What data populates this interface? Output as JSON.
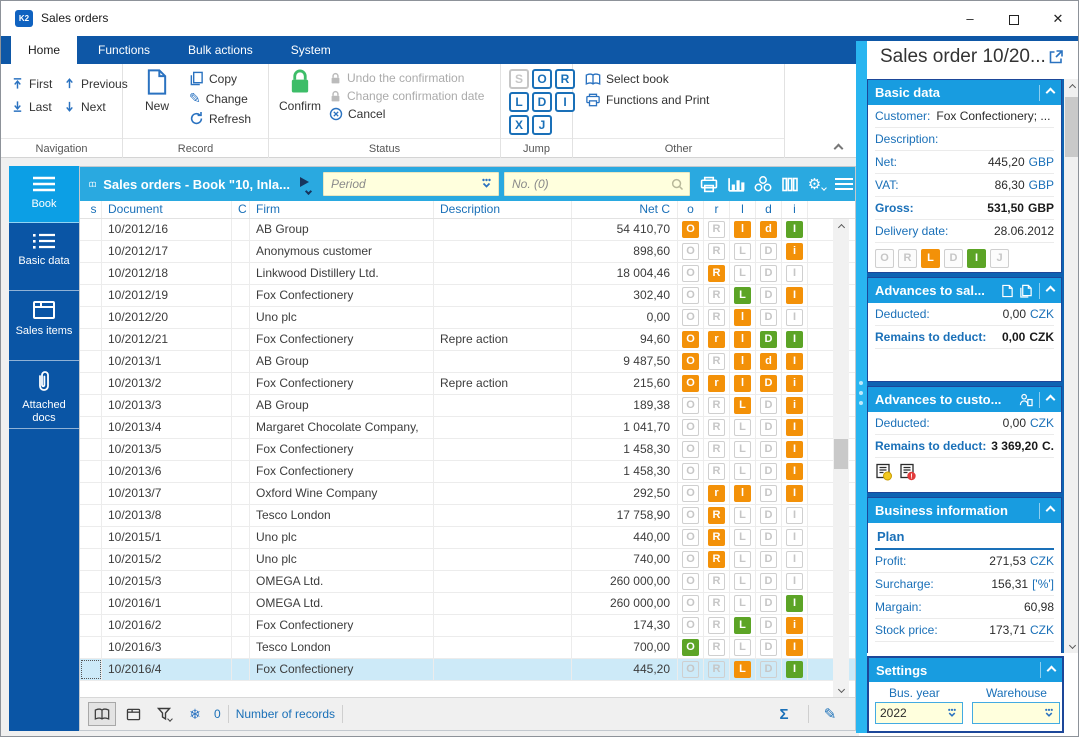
{
  "titlebar": {
    "app_title": "Sales orders"
  },
  "tabs": [
    {
      "label": "Home",
      "active": true
    },
    {
      "label": "Functions",
      "active": false
    },
    {
      "label": "Bulk actions",
      "active": false
    },
    {
      "label": "System",
      "active": false
    }
  ],
  "ribbon": {
    "navigation": {
      "label": "Navigation",
      "first": "First",
      "previous": "Previous",
      "last": "Last",
      "next": "Next"
    },
    "record": {
      "label": "Record",
      "new": "New",
      "copy": "Copy",
      "change": "Change",
      "refresh": "Refresh"
    },
    "status": {
      "label": "Status",
      "confirm": "Confirm",
      "undo": "Undo the confirmation",
      "change_date": "Change confirmation date",
      "cancel": "Cancel"
    },
    "jump": {
      "label": "Jump",
      "letters": [
        {
          "ch": "S",
          "disabled": true
        },
        {
          "ch": "O",
          "disabled": false
        },
        {
          "ch": "R",
          "disabled": false
        },
        {
          "ch": "L",
          "disabled": false
        },
        {
          "ch": "D",
          "disabled": false
        },
        {
          "ch": "I",
          "disabled": false
        },
        {
          "ch": "X",
          "disabled": false
        },
        {
          "ch": "J",
          "disabled": false
        }
      ]
    },
    "other": {
      "label": "Other",
      "select_book": "Select book",
      "functions_print": "Functions and Print"
    }
  },
  "sidebar": {
    "items": [
      {
        "label": "Book",
        "icon": "menu-icon",
        "active": true
      },
      {
        "label": "Basic data",
        "icon": "list-icon",
        "active": false
      },
      {
        "label": "Sales items",
        "icon": "box-icon",
        "active": false
      },
      {
        "label": "Attached docs",
        "icon": "paperclip-icon",
        "active": false
      }
    ]
  },
  "grid": {
    "title": "Sales orders - Book \"10, Inla...",
    "period_placeholder": "Period",
    "search_placeholder": "No. (0)",
    "toolbar_icons": [
      "printer-icon",
      "bar-chart-icon",
      "cluster-icon",
      "columns-icon",
      "gear-icon",
      "menu-icon"
    ],
    "columns": [
      "s",
      "Document",
      "C",
      "Firm",
      "Description",
      "Net C",
      "o",
      "r",
      "l",
      "d",
      "i"
    ],
    "rows": [
      {
        "document": "10/2012/16",
        "firm": "AB Group",
        "description": "",
        "net": "54 410,70",
        "selected": false,
        "status": [
          {
            "ch": "O",
            "style": "orange"
          },
          {
            "ch": "R",
            "style": "grey"
          },
          {
            "ch": "l",
            "style": "orange"
          },
          {
            "ch": "d",
            "style": "orange"
          },
          {
            "ch": "I",
            "style": "green"
          }
        ]
      },
      {
        "document": "10/2012/17",
        "firm": "Anonymous customer",
        "description": "",
        "net": "898,60",
        "selected": false,
        "status": [
          {
            "ch": "O",
            "style": "grey"
          },
          {
            "ch": "R",
            "style": "grey"
          },
          {
            "ch": "L",
            "style": "grey"
          },
          {
            "ch": "D",
            "style": "grey"
          },
          {
            "ch": "i",
            "style": "orange"
          }
        ]
      },
      {
        "document": "10/2012/18",
        "firm": "Linkwood Distillery Ltd.",
        "description": "",
        "net": "18 004,46",
        "selected": false,
        "status": [
          {
            "ch": "O",
            "style": "grey"
          },
          {
            "ch": "R",
            "style": "orange"
          },
          {
            "ch": "L",
            "style": "grey"
          },
          {
            "ch": "D",
            "style": "grey"
          },
          {
            "ch": "I",
            "style": "grey"
          }
        ]
      },
      {
        "document": "10/2012/19",
        "firm": "Fox Confectionery",
        "description": "",
        "net": "302,40",
        "selected": false,
        "status": [
          {
            "ch": "O",
            "style": "grey"
          },
          {
            "ch": "R",
            "style": "grey"
          },
          {
            "ch": "L",
            "style": "green"
          },
          {
            "ch": "D",
            "style": "grey"
          },
          {
            "ch": "I",
            "style": "orange"
          }
        ]
      },
      {
        "document": "10/2012/20",
        "firm": "Uno plc",
        "description": "",
        "net": "0,00",
        "selected": false,
        "status": [
          {
            "ch": "O",
            "style": "grey"
          },
          {
            "ch": "R",
            "style": "grey"
          },
          {
            "ch": "l",
            "style": "orange"
          },
          {
            "ch": "D",
            "style": "grey"
          },
          {
            "ch": "I",
            "style": "grey"
          }
        ]
      },
      {
        "document": "10/2012/21",
        "firm": "Fox Confectionery",
        "description": "Repre action",
        "net": "94,60",
        "selected": false,
        "status": [
          {
            "ch": "O",
            "style": "orange"
          },
          {
            "ch": "r",
            "style": "orange"
          },
          {
            "ch": "l",
            "style": "orange"
          },
          {
            "ch": "D",
            "style": "green"
          },
          {
            "ch": "I",
            "style": "green"
          }
        ]
      },
      {
        "document": "10/2013/1",
        "firm": "AB Group",
        "description": "",
        "net": "9 487,50",
        "selected": false,
        "status": [
          {
            "ch": "O",
            "style": "orange"
          },
          {
            "ch": "R",
            "style": "grey"
          },
          {
            "ch": "l",
            "style": "orange"
          },
          {
            "ch": "d",
            "style": "orange"
          },
          {
            "ch": "I",
            "style": "orange"
          }
        ]
      },
      {
        "document": "10/2013/2",
        "firm": "Fox Confectionery",
        "description": "Repre action",
        "net": "215,60",
        "selected": false,
        "status": [
          {
            "ch": "O",
            "style": "orange"
          },
          {
            "ch": "r",
            "style": "orange"
          },
          {
            "ch": "l",
            "style": "orange"
          },
          {
            "ch": "D",
            "style": "orange"
          },
          {
            "ch": "i",
            "style": "orange"
          }
        ]
      },
      {
        "document": "10/2013/3",
        "firm": "AB Group",
        "description": "",
        "net": "189,38",
        "selected": false,
        "status": [
          {
            "ch": "O",
            "style": "grey"
          },
          {
            "ch": "R",
            "style": "grey"
          },
          {
            "ch": "L",
            "style": "orange"
          },
          {
            "ch": "D",
            "style": "grey"
          },
          {
            "ch": "i",
            "style": "orange"
          }
        ]
      },
      {
        "document": "10/2013/4",
        "firm": "Margaret Chocolate Company,",
        "description": "",
        "net": "1 041,70",
        "selected": false,
        "status": [
          {
            "ch": "O",
            "style": "grey"
          },
          {
            "ch": "R",
            "style": "grey"
          },
          {
            "ch": "L",
            "style": "grey"
          },
          {
            "ch": "D",
            "style": "grey"
          },
          {
            "ch": "I",
            "style": "orange"
          }
        ]
      },
      {
        "document": "10/2013/5",
        "firm": "Fox Confectionery",
        "description": "",
        "net": "1 458,30",
        "selected": false,
        "status": [
          {
            "ch": "O",
            "style": "grey"
          },
          {
            "ch": "R",
            "style": "grey"
          },
          {
            "ch": "L",
            "style": "grey"
          },
          {
            "ch": "D",
            "style": "grey"
          },
          {
            "ch": "I",
            "style": "orange"
          }
        ]
      },
      {
        "document": "10/2013/6",
        "firm": "Fox Confectionery",
        "description": "",
        "net": "1 458,30",
        "selected": false,
        "status": [
          {
            "ch": "O",
            "style": "grey"
          },
          {
            "ch": "R",
            "style": "grey"
          },
          {
            "ch": "L",
            "style": "grey"
          },
          {
            "ch": "D",
            "style": "grey"
          },
          {
            "ch": "I",
            "style": "orange"
          }
        ]
      },
      {
        "document": "10/2013/7",
        "firm": "Oxford Wine Company",
        "description": "",
        "net": "292,50",
        "selected": false,
        "status": [
          {
            "ch": "O",
            "style": "grey"
          },
          {
            "ch": "r",
            "style": "orange"
          },
          {
            "ch": "l",
            "style": "orange"
          },
          {
            "ch": "D",
            "style": "grey"
          },
          {
            "ch": "I",
            "style": "orange"
          }
        ]
      },
      {
        "document": "10/2013/8",
        "firm": "Tesco London",
        "description": "",
        "net": "17 758,90",
        "selected": false,
        "status": [
          {
            "ch": "O",
            "style": "grey"
          },
          {
            "ch": "R",
            "style": "orange"
          },
          {
            "ch": "L",
            "style": "grey"
          },
          {
            "ch": "D",
            "style": "grey"
          },
          {
            "ch": "I",
            "style": "grey"
          }
        ]
      },
      {
        "document": "10/2015/1",
        "firm": "Uno plc",
        "description": "",
        "net": "440,00",
        "selected": false,
        "status": [
          {
            "ch": "O",
            "style": "grey"
          },
          {
            "ch": "R",
            "style": "orange"
          },
          {
            "ch": "L",
            "style": "grey"
          },
          {
            "ch": "D",
            "style": "grey"
          },
          {
            "ch": "I",
            "style": "grey"
          }
        ]
      },
      {
        "document": "10/2015/2",
        "firm": "Uno plc",
        "description": "",
        "net": "740,00",
        "selected": false,
        "status": [
          {
            "ch": "O",
            "style": "grey"
          },
          {
            "ch": "R",
            "style": "orange"
          },
          {
            "ch": "L",
            "style": "grey"
          },
          {
            "ch": "D",
            "style": "grey"
          },
          {
            "ch": "I",
            "style": "grey"
          }
        ]
      },
      {
        "document": "10/2015/3",
        "firm": "OMEGA Ltd.",
        "description": "",
        "net": "260 000,00",
        "selected": false,
        "status": [
          {
            "ch": "O",
            "style": "grey"
          },
          {
            "ch": "R",
            "style": "grey"
          },
          {
            "ch": "L",
            "style": "grey"
          },
          {
            "ch": "D",
            "style": "grey"
          },
          {
            "ch": "I",
            "style": "grey"
          }
        ]
      },
      {
        "document": "10/2016/1",
        "firm": "OMEGA Ltd.",
        "description": "",
        "net": "260 000,00",
        "selected": false,
        "status": [
          {
            "ch": "O",
            "style": "grey"
          },
          {
            "ch": "R",
            "style": "grey"
          },
          {
            "ch": "L",
            "style": "grey"
          },
          {
            "ch": "D",
            "style": "grey"
          },
          {
            "ch": "I",
            "style": "green"
          }
        ]
      },
      {
        "document": "10/2016/2",
        "firm": "Fox Confectionery",
        "description": "",
        "net": "174,30",
        "selected": false,
        "status": [
          {
            "ch": "O",
            "style": "grey"
          },
          {
            "ch": "R",
            "style": "grey"
          },
          {
            "ch": "L",
            "style": "green"
          },
          {
            "ch": "D",
            "style": "grey"
          },
          {
            "ch": "i",
            "style": "orange"
          }
        ]
      },
      {
        "document": "10/2016/3",
        "firm": "Tesco London",
        "description": "",
        "net": "700,00",
        "selected": false,
        "status": [
          {
            "ch": "O",
            "style": "green"
          },
          {
            "ch": "R",
            "style": "grey"
          },
          {
            "ch": "L",
            "style": "grey"
          },
          {
            "ch": "D",
            "style": "grey"
          },
          {
            "ch": "I",
            "style": "orange"
          }
        ]
      },
      {
        "document": "10/2016/4",
        "firm": "Fox Confectionery",
        "description": "",
        "net": "445,20",
        "selected": true,
        "status": [
          {
            "ch": "O",
            "style": "grey"
          },
          {
            "ch": "R",
            "style": "grey"
          },
          {
            "ch": "L",
            "style": "orange"
          },
          {
            "ch": "D",
            "style": "grey"
          },
          {
            "ch": "I",
            "style": "green"
          }
        ]
      }
    ],
    "footer": {
      "frozen_count": "0",
      "records_label": "Number of records"
    }
  },
  "panel": {
    "title": "Sales order 10/20...",
    "basic": {
      "title": "Basic data",
      "customer_label": "Customer:",
      "customer": "Fox Confectionery; ...",
      "description_label": "Description:",
      "description": "",
      "net_label": "Net:",
      "net": "445,20",
      "net_unit": "GBP",
      "vat_label": "VAT:",
      "vat": "86,30",
      "vat_unit": "GBP",
      "gross_label": "Gross:",
      "gross": "531,50",
      "gross_unit": "GBP",
      "delivery_label": "Delivery date:",
      "delivery": "28.06.2012",
      "badges": [
        {
          "ch": "O",
          "style": "grey"
        },
        {
          "ch": "R",
          "style": "grey"
        },
        {
          "ch": "L",
          "style": "orange"
        },
        {
          "ch": "D",
          "style": "grey"
        },
        {
          "ch": "I",
          "style": "green"
        },
        {
          "ch": "J",
          "style": "grey"
        }
      ]
    },
    "adv_sales": {
      "title": "Advances to sal...",
      "deducted_label": "Deducted:",
      "deducted": "0,00",
      "deducted_unit": "CZK",
      "remains_label": "Remains to deduct:",
      "remains": "0,00",
      "remains_unit": "CZK"
    },
    "adv_cust": {
      "title": "Advances to custo...",
      "deducted_label": "Deducted:",
      "deducted": "0,00",
      "deducted_unit": "CZK",
      "remains_label": "Remains to deduct:",
      "remains": "3 369,20",
      "remains_unit": "C."
    },
    "business": {
      "title": "Business information",
      "subheader": "Plan",
      "rows": [
        {
          "label": "Profit:",
          "value": "271,53",
          "unit": "CZK"
        },
        {
          "label": "Surcharge:",
          "value": "156,31",
          "unit": "['%']"
        },
        {
          "label": "Margain:",
          "value": "60,98",
          "unit": ""
        },
        {
          "label": "Stock price:",
          "value": "173,71",
          "unit": "CZK"
        }
      ]
    },
    "settings": {
      "title": "Settings",
      "bus_year_label": "Bus. year",
      "bus_year": "2022",
      "warehouse_label": "Warehouse",
      "warehouse": ""
    }
  },
  "colors": {
    "ribbon_blue": "#0e57a6",
    "toolbar_cyan": "#2aa9e0",
    "section_header_cyan": "#189ce0",
    "panel_bg_blue": "#0e63b2",
    "sidebar_blue": "#0a55a5",
    "sidebar_active": "#0c9fe5",
    "status_orange": "#f39108",
    "status_green": "#5ca426",
    "selected_row": "#cdeaf8",
    "field_yellow": "#ffffdd",
    "confirm_green": "#3dbd68"
  }
}
